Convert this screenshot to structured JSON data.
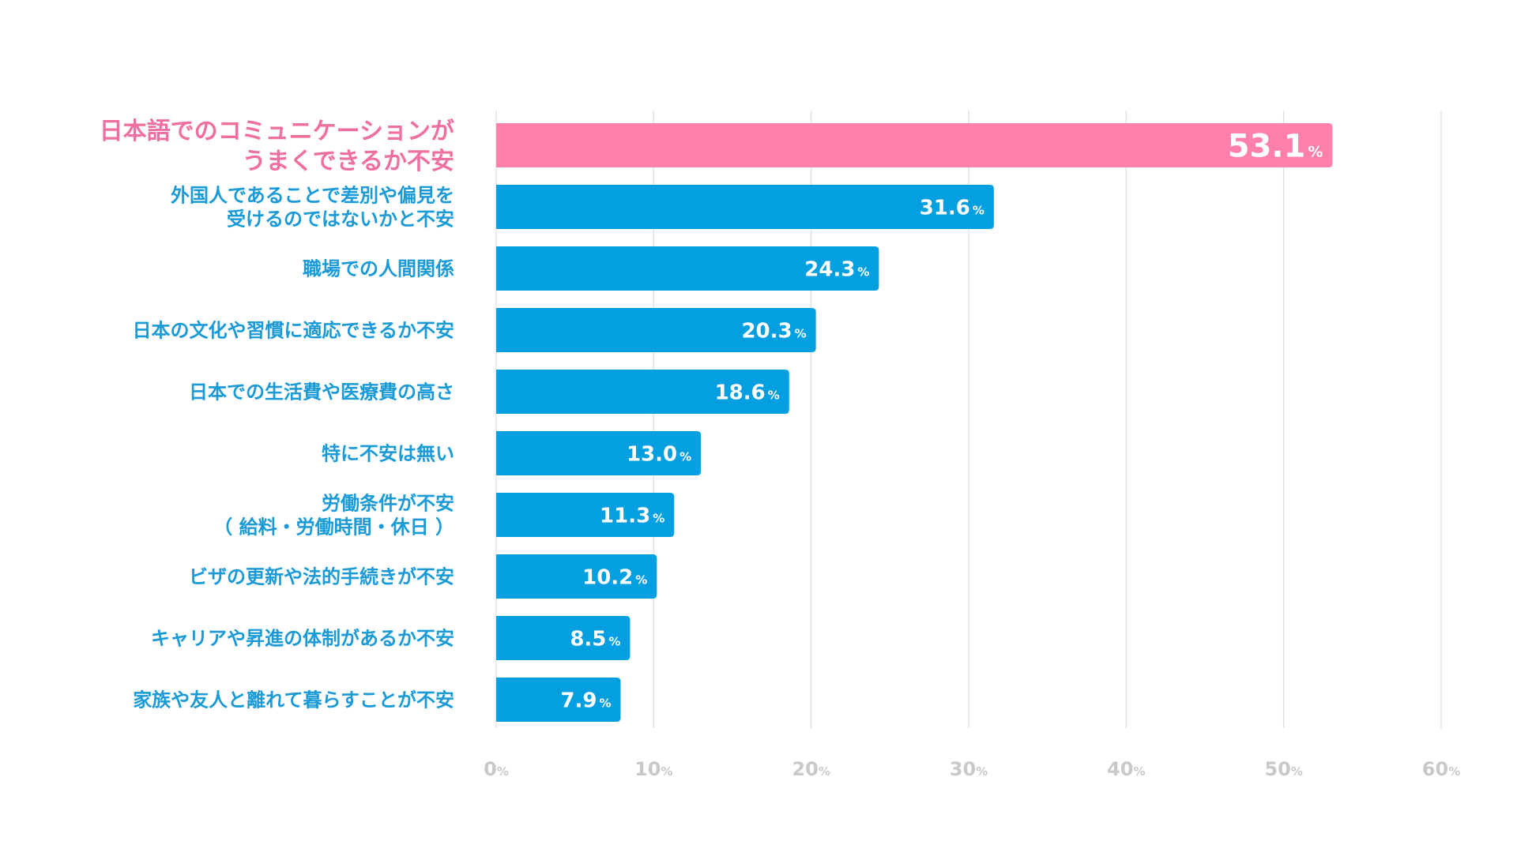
{
  "chart_data": {
    "type": "bar",
    "orientation": "horizontal",
    "categories": [
      [
        "日本語でのコミュニケーションが",
        "うまくできるか不安"
      ],
      [
        "外国人であることで差別や偏見を",
        "受けるのではないかと不安"
      ],
      [
        "職場での人間関係"
      ],
      [
        "日本の文化や習慣に適応できるか不安"
      ],
      [
        "日本での生活費や医療費の高さ"
      ],
      [
        "特に不安は無い"
      ],
      [
        "労働条件が不安",
        "（ 給料・労働時間・休日 ）"
      ],
      [
        "ビザの更新や法的手続きが不安"
      ],
      [
        "キャリアや昇進の体制があるか不安"
      ],
      [
        "家族や友人と離れて暮らすことが不安"
      ]
    ],
    "values": [
      53.1,
      31.6,
      24.3,
      20.3,
      18.6,
      13.0,
      11.3,
      10.2,
      8.5,
      7.9
    ],
    "value_labels": [
      "53.1",
      "31.6",
      "24.3",
      "20.3",
      "18.6",
      "13.0",
      "11.3",
      "10.2",
      "8.5",
      "7.9"
    ],
    "value_unit": "%",
    "highlight_index": 0,
    "xlim": [
      0,
      60
    ],
    "xticks": [
      0,
      10,
      20,
      30,
      40,
      50,
      60
    ],
    "xtick_labels": [
      "0",
      "10",
      "20",
      "30",
      "40",
      "50",
      "60"
    ],
    "tick_unit": "%",
    "grid": true,
    "title": "",
    "xlabel": "",
    "ylabel": "",
    "colors": {
      "highlight": "#ff7fab",
      "highlight_text": "#ef6fa0",
      "bar": "#049fe1",
      "label": "#1a9ad6",
      "tick": "#c9c9c9",
      "grid": "#e3e3e3"
    }
  }
}
